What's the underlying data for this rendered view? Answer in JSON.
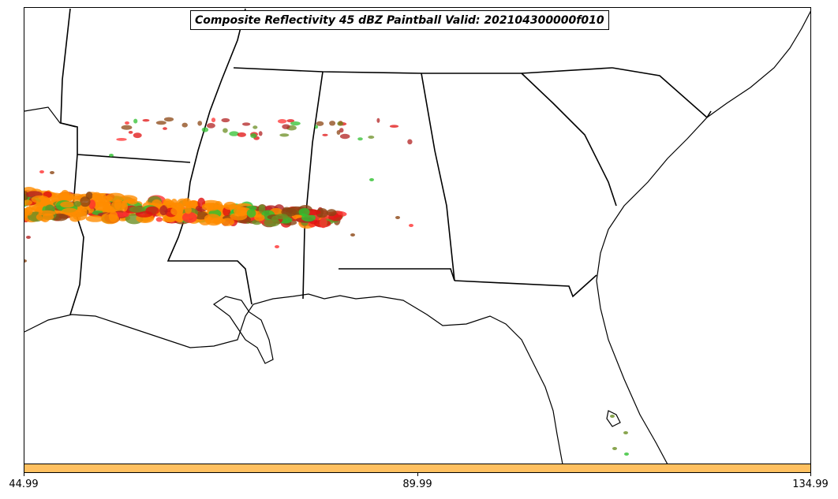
{
  "map": {
    "title": "Composite Reflectivity 45 dBZ Paintball Valid: 202104300000f010"
  },
  "colorbar": {
    "color": "#ffc060",
    "ticks": [
      "44.99",
      "89.99",
      "134.99"
    ]
  },
  "paintball_colors": [
    "#ff8c00",
    "#e01010",
    "#30c030",
    "#8b4513",
    "#6b8e23",
    "#ff3030",
    "#b22222"
  ]
}
